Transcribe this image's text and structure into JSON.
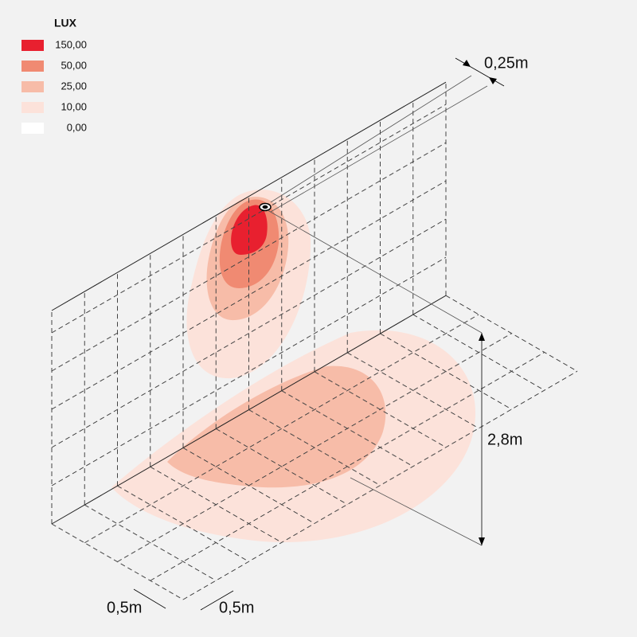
{
  "legend": {
    "title": "LUX",
    "items": [
      {
        "label": "150,00",
        "color": "#e8202f"
      },
      {
        "label": "50,00",
        "color": "#f08a72"
      },
      {
        "label": "25,00",
        "color": "#f7bca8"
      },
      {
        "label": "10,00",
        "color": "#fce2da"
      },
      {
        "label": "0,00",
        "color": "#ffffff"
      }
    ]
  },
  "dimensions": {
    "offset": "0,25m",
    "height": "2,8m",
    "grid_x": "0,5m",
    "grid_y": "0,5m"
  }
}
